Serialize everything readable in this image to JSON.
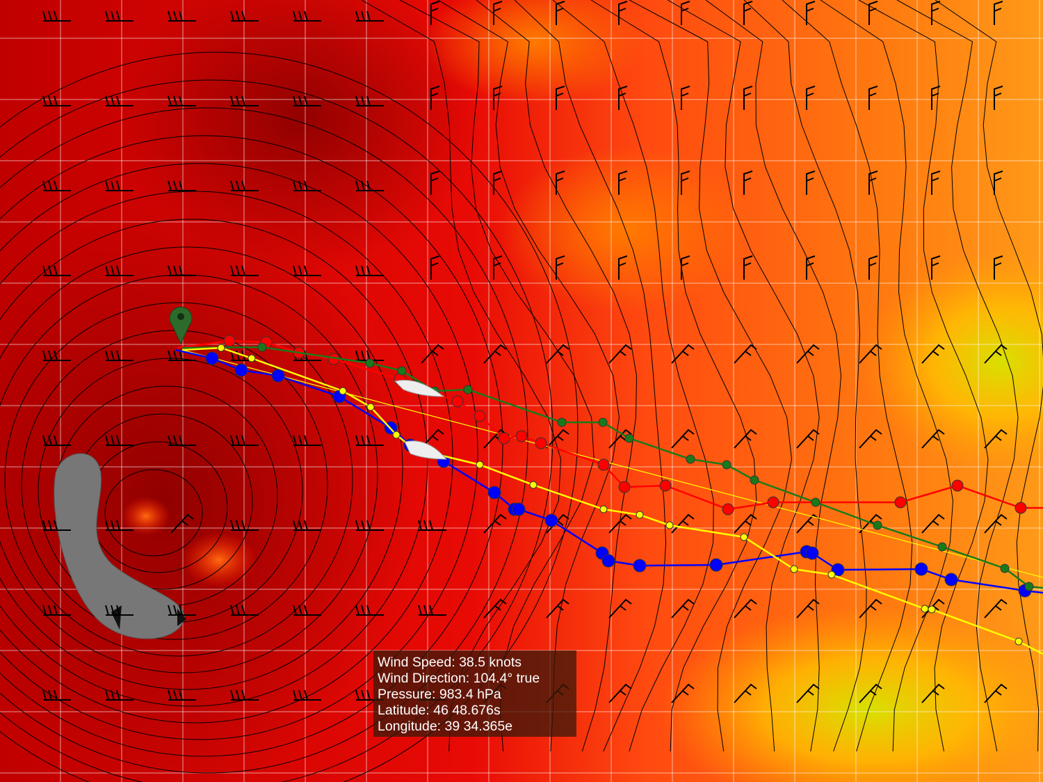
{
  "tooltip": {
    "wind_speed": "Wind Speed: 38.5 knots",
    "wind_direction": "Wind Direction: 104.4° true",
    "pressure": "Pressure: 983.4 hPa",
    "latitude": "Latitude: 46 48.676s",
    "longitude": "Longitude: 39 34.365e"
  }
}
